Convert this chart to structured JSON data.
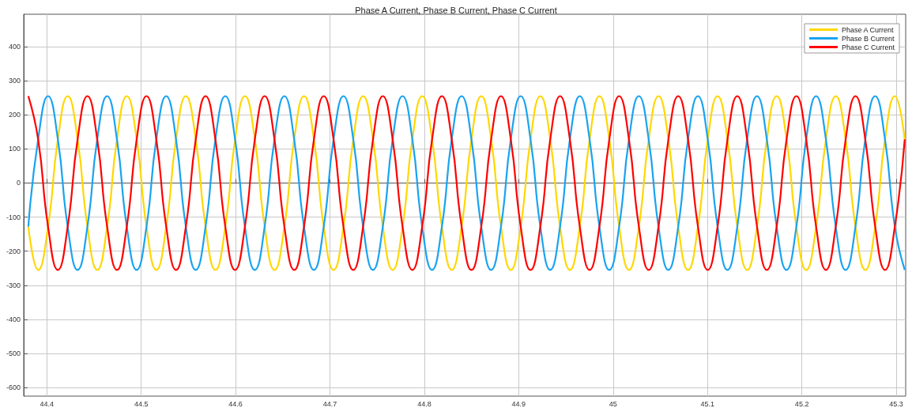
{
  "chart_data": {
    "type": "line",
    "title": "Phase A Current, Phase B Current, Phase C Current",
    "x": [
      44.3804,
      44.3908,
      44.4013,
      44.4117,
      44.4221,
      44.4326,
      44.443,
      44.4534,
      44.4639,
      44.4743,
      44.4847,
      44.4952,
      44.5056,
      44.516,
      44.5265,
      44.5369,
      44.5473,
      44.5578,
      44.5682,
      44.5786,
      44.5891,
      44.5995,
      44.6099,
      44.6204,
      44.6308,
      44.6412,
      44.6517,
      44.6621,
      44.6725,
      44.683,
      44.6934,
      44.7038,
      44.7143,
      44.7247,
      44.7351,
      44.7456,
      44.756,
      44.7664,
      44.7769,
      44.7873,
      44.7977,
      44.8082,
      44.8186,
      44.829,
      44.8395,
      44.8499,
      44.8603,
      44.8708,
      44.8812,
      44.8916,
      44.9021,
      44.9125,
      44.9229,
      44.9334,
      44.9438,
      44.9542,
      44.9647,
      44.9751,
      44.9855,
      44.996,
      45.0064,
      45.0168,
      45.0273,
      45.0377,
      45.0481,
      45.0586,
      45.069,
      45.0794,
      45.0899,
      45.1003,
      45.1107,
      45.1212,
      45.1316,
      45.142,
      45.1525,
      45.1629,
      45.1733,
      45.1838,
      45.1942,
      45.2046,
      45.2151,
      45.2255,
      45.2359,
      45.2464,
      45.2568,
      45.2672,
      45.2777,
      45.2881,
      45.2985,
      45.309
    ],
    "series": [
      {
        "name": "Phase A Current",
        "color": "#ffd700",
        "values": [
          -128,
          -255,
          -128,
          128,
          255,
          128,
          -128,
          -255,
          -128,
          128,
          255,
          128,
          -128,
          -255,
          -128,
          128,
          255,
          128,
          -128,
          -255,
          -128,
          128,
          255,
          128,
          -128,
          -255,
          -128,
          128,
          255,
          128,
          -128,
          -255,
          -128,
          128,
          255,
          128,
          -128,
          -255,
          -128,
          128,
          255,
          128,
          -128,
          -255,
          -128,
          128,
          255,
          128,
          -128,
          -255,
          -128,
          128,
          255,
          128,
          -128,
          -255,
          -128,
          128,
          255,
          128,
          -128,
          -255,
          -128,
          128,
          255,
          128,
          -128,
          -255,
          -128,
          128,
          255,
          128,
          -128,
          -255,
          -128,
          128,
          255,
          128,
          -128,
          -255,
          -128,
          128,
          255,
          128,
          -128,
          -255,
          -128,
          128,
          255,
          128
        ]
      },
      {
        "name": "Phase B Current",
        "color": "#1aa3f0",
        "values": [
          -128,
          128,
          255,
          128,
          -128,
          -255,
          -128,
          128,
          255,
          128,
          -128,
          -255,
          -128,
          128,
          255,
          128,
          -128,
          -255,
          -128,
          128,
          255,
          128,
          -128,
          -255,
          -128,
          128,
          255,
          128,
          -128,
          -255,
          -128,
          128,
          255,
          128,
          -128,
          -255,
          -128,
          128,
          255,
          128,
          -128,
          -255,
          -128,
          128,
          255,
          128,
          -128,
          -255,
          -128,
          128,
          255,
          128,
          -128,
          -255,
          -128,
          128,
          255,
          128,
          -128,
          -255,
          -128,
          128,
          255,
          128,
          -128,
          -255,
          -128,
          128,
          255,
          128,
          -128,
          -255,
          -128,
          128,
          255,
          128,
          -128,
          -255,
          -128,
          128,
          255,
          128,
          -128,
          -255,
          -128,
          128,
          255,
          128,
          -128,
          -255
        ]
      },
      {
        "name": "Phase C Current",
        "color": "#ff0000",
        "values": [
          255,
          128,
          -128,
          -255,
          -128,
          128,
          255,
          128,
          -128,
          -255,
          -128,
          128,
          255,
          128,
          -128,
          -255,
          -128,
          128,
          255,
          128,
          -128,
          -255,
          -128,
          128,
          255,
          128,
          -128,
          -255,
          -128,
          128,
          255,
          128,
          -128,
          -255,
          -128,
          128,
          255,
          128,
          -128,
          -255,
          -128,
          128,
          255,
          128,
          -128,
          -255,
          -128,
          128,
          255,
          128,
          -128,
          -255,
          -128,
          128,
          255,
          128,
          -128,
          -255,
          -128,
          128,
          255,
          128,
          -128,
          -255,
          -128,
          128,
          255,
          128,
          -128,
          -255,
          -128,
          128,
          255,
          128,
          -128,
          -255,
          -128,
          128,
          255,
          128,
          -128,
          -255,
          -128,
          128,
          255,
          128,
          -128,
          -255,
          -128,
          128
        ]
      }
    ],
    "xlim": [
      44.3755,
      45.31
    ],
    "xticks": [
      44.4,
      44.5,
      44.6,
      44.7,
      44.8,
      44.9,
      45,
      45.1,
      45.2,
      45.3
    ],
    "ylim": [
      -625,
      495
    ],
    "yticks": [
      -600,
      -500,
      -400,
      -300,
      -200,
      -100,
      0,
      100,
      200,
      300,
      400
    ],
    "grid": true,
    "legend": "top right",
    "line_style": "solid"
  }
}
